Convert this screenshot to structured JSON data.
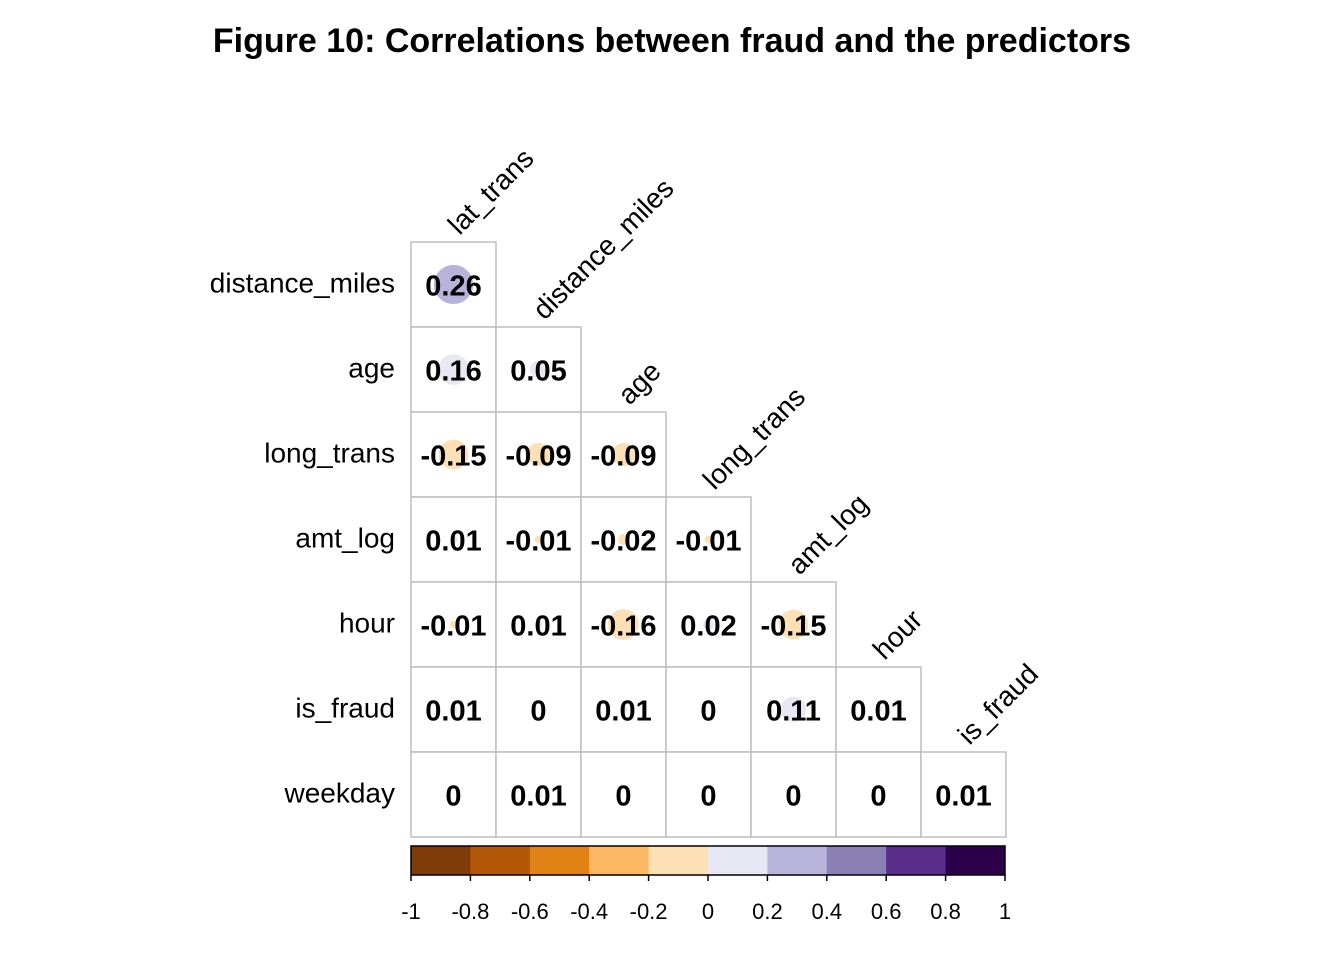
{
  "chart_data": {
    "type": "heatmap",
    "title": "Figure 10: Correlations between fraud and the predictors",
    "columns": [
      "lat_trans",
      "distance_miles",
      "age",
      "long_trans",
      "amt_log",
      "hour",
      "is_fraud"
    ],
    "rows": [
      "distance_miles",
      "age",
      "long_trans",
      "amt_log",
      "hour",
      "is_fraud",
      "weekday"
    ],
    "values": [
      [
        0.26
      ],
      [
        0.16,
        0.05
      ],
      [
        -0.15,
        -0.09,
        -0.09
      ],
      [
        0.01,
        -0.01,
        -0.02,
        -0.01
      ],
      [
        -0.01,
        0.01,
        -0.16,
        0.02,
        -0.15
      ],
      [
        0.01,
        0,
        0.01,
        0,
        0.11,
        0.01
      ],
      [
        0,
        0.01,
        0,
        0,
        0,
        0,
        0.01
      ]
    ],
    "labels": [
      [
        "0.26"
      ],
      [
        "0.16",
        "0.05"
      ],
      [
        "-0.15",
        "-0.09",
        "-0.09"
      ],
      [
        "0.01",
        "-0.01",
        "-0.02",
        "-0.01"
      ],
      [
        "-0.01",
        "0.01",
        "-0.16",
        "0.02",
        "-0.15"
      ],
      [
        "0.01",
        "0",
        "0.01",
        "0",
        "0.11",
        "0.01"
      ],
      [
        "0",
        "0.01",
        "0",
        "0",
        "0",
        "0",
        "0.01"
      ]
    ],
    "color_scale": {
      "range": [
        -1,
        1
      ],
      "colors": [
        "#7F3B08",
        "#B35806",
        "#E08214",
        "#FDB863",
        "#FEE0B6",
        "#E8E8F4",
        "#B8B3DA",
        "#8C7FB5",
        "#5A2D8C",
        "#2D004B"
      ],
      "ticks": [
        "-1",
        "-0.8",
        "-0.6",
        "-0.4",
        "-0.2",
        "0",
        "0.2",
        "0.4",
        "0.6",
        "0.8",
        "1"
      ]
    },
    "grid_color": "#BEBEBE"
  }
}
